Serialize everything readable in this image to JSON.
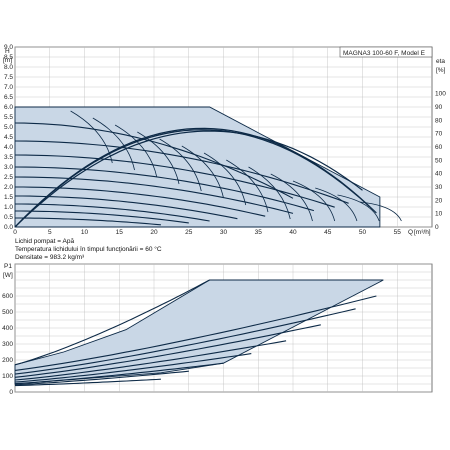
{
  "chart_data": [
    {
      "type": "line",
      "title": "MAGNA3 100-60 F, Model E",
      "ylabel": "H",
      "yunit": "[m]",
      "xlabel": "Q",
      "xunit": "[m³/h]",
      "right_label": "eta",
      "right_unit": "[%]",
      "xlim": [
        0,
        60
      ],
      "ylim": [
        0,
        9
      ],
      "eta_lim": [
        0,
        135
      ],
      "x_ticks": [
        "0",
        "5",
        "10",
        "15",
        "20",
        "25",
        "30",
        "35",
        "40",
        "45",
        "50",
        "55"
      ],
      "y_ticks": [
        "0.0",
        "0.5",
        "1.0",
        "1.5",
        "2.0",
        "2.5",
        "3.0",
        "3.5",
        "4.0",
        "4.5",
        "5.0",
        "5.5",
        "6.0",
        "6.5",
        "7.0",
        "7.5",
        "8.0",
        "8.5",
        "9.0"
      ],
      "eta_ticks": [
        "0",
        "10",
        "20",
        "30",
        "40",
        "50",
        "60",
        "70",
        "80",
        "90",
        "100"
      ],
      "envelope": [
        [
          0,
          6.0
        ],
        [
          28,
          6.0
        ],
        [
          52.5,
          1.5
        ],
        [
          52.5,
          0
        ],
        [
          0,
          0
        ]
      ],
      "speed_curves": [
        {
          "q_max": 40,
          "h0": 5.2
        },
        {
          "q_max": 48,
          "h0": 4.3
        },
        {
          "q_max": 46,
          "h0": 3.6
        },
        {
          "q_max": 43,
          "h0": 3.0
        },
        {
          "q_max": 40,
          "h0": 2.5
        },
        {
          "q_max": 36,
          "h0": 2.0
        },
        {
          "q_max": 32,
          "h0": 1.55
        },
        {
          "q_max": 28,
          "h0": 1.15
        },
        {
          "q_max": 25,
          "h0": 0.8
        },
        {
          "q_max": 21,
          "h0": 0.45
        }
      ],
      "eta_curves": [
        {
          "q_max": 52,
          "peak_q": 27,
          "peak_eta": 74
        },
        {
          "q_max": 51,
          "peak_q": 27,
          "peak_eta": 73
        },
        {
          "q_max": 50,
          "peak_q": 28,
          "peak_eta": 72
        }
      ]
    },
    {
      "type": "line",
      "ylabel": "P1",
      "yunit": "[W]",
      "xlim": [
        0,
        60
      ],
      "ylim": [
        0,
        800
      ],
      "y_ticks": [
        "0",
        "100",
        "200",
        "300",
        "400",
        "500",
        "600"
      ],
      "envelope": [
        [
          0,
          170
        ],
        [
          7,
          250
        ],
        [
          16,
          390
        ],
        [
          28,
          700
        ],
        [
          53,
          700
        ],
        [
          30,
          180
        ],
        [
          21,
          120
        ],
        [
          0,
          50
        ]
      ],
      "power_curves": [
        {
          "q_start": 0,
          "p_start": 170,
          "q_end": 28,
          "p_end": 700
        },
        {
          "q_start": 0,
          "p_start": 135,
          "q_end": 52,
          "p_end": 600
        },
        {
          "q_start": 0,
          "p_start": 112,
          "q_end": 49,
          "p_end": 520
        },
        {
          "q_start": 0,
          "p_start": 92,
          "q_end": 44,
          "p_end": 420
        },
        {
          "q_start": 0,
          "p_start": 75,
          "q_end": 39,
          "p_end": 320
        },
        {
          "q_start": 0,
          "p_start": 62,
          "q_end": 34,
          "p_end": 240
        },
        {
          "q_start": 0,
          "p_start": 52,
          "q_end": 30,
          "p_end": 180
        },
        {
          "q_start": 0,
          "p_start": 45,
          "q_end": 25,
          "p_end": 130
        },
        {
          "q_start": 0,
          "p_start": 40,
          "q_end": 21,
          "p_end": 80
        }
      ]
    }
  ],
  "info": {
    "liquid": "Lichid pompat = Apă",
    "temperature": "Temperatura lichidului în timpul funcţionării = 60 °C",
    "density": "Densitate = 983.2 kg/m³"
  },
  "colors": {
    "fill": "#c9d7e6",
    "curve": "#0d2a47",
    "grid": "#bbbbbb",
    "frame": "#555555"
  }
}
